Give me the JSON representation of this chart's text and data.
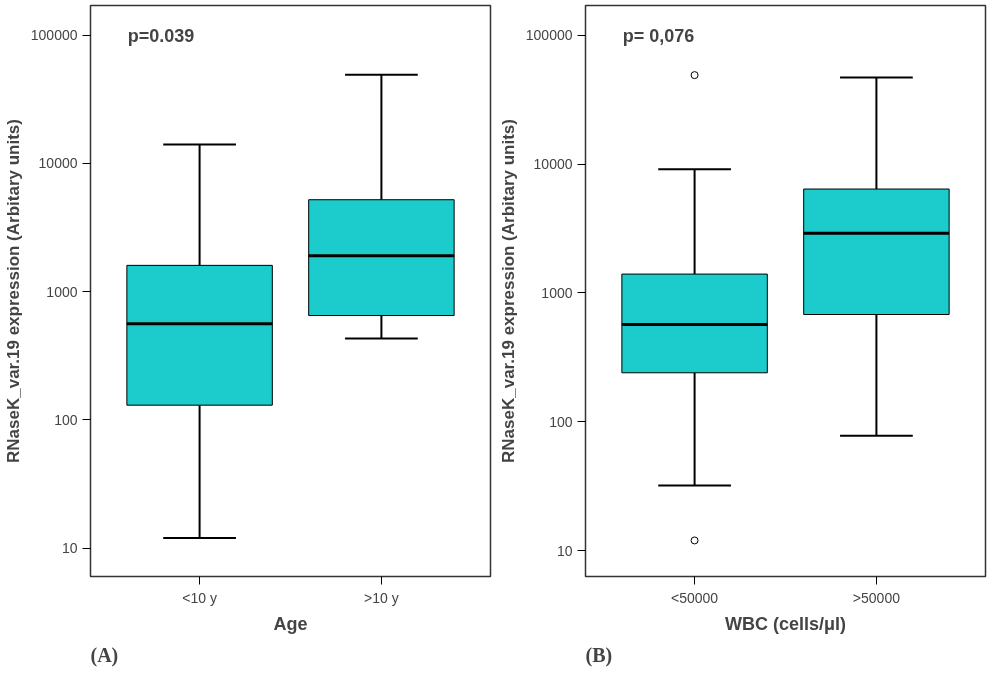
{
  "chart_data": [
    {
      "type": "box",
      "categories": [
        "<10 y",
        ">10 y"
      ],
      "xlabel": "Age",
      "ylabel": "RNaseK_var.19 expression (Arbitary units)",
      "log": true,
      "grid": false,
      "ylim": [
        6,
        170000
      ],
      "yticks": [
        10,
        100,
        1000,
        10000,
        100000
      ],
      "series": [
        {
          "color": "#1ccccc",
          "boxes": [
            {
              "low": 12,
              "q1": 130,
              "median": 560,
              "q3": 1600,
              "high": 14000
            },
            {
              "low": 430,
              "q1": 650,
              "median": 1900,
              "q3": 5200,
              "high": 49000
            }
          ]
        }
      ],
      "annotations": [
        "p=0.039",
        "(A)"
      ]
    },
    {
      "type": "box",
      "categories": [
        "<50000",
        ">50000"
      ],
      "xlabel": "WBC (cells/μl)",
      "ylabel": "RNaseK_var.19 expression (Arbitary units)",
      "log": true,
      "grid": false,
      "ylim": [
        6.3,
        170000
      ],
      "yticks": [
        10,
        100,
        1000,
        10000,
        100000
      ],
      "series": [
        {
          "color": "#1ccccc",
          "boxes": [
            {
              "low": 32,
              "q1": 240,
              "median": 570,
              "q3": 1400,
              "high": 9100,
              "outliers": [
                49000,
                12
              ]
            },
            {
              "low": 78,
              "q1": 680,
              "median": 2900,
              "q3": 6400,
              "high": 47000
            }
          ]
        }
      ],
      "annotations": [
        "p= 0,076",
        "(B)"
      ]
    }
  ]
}
